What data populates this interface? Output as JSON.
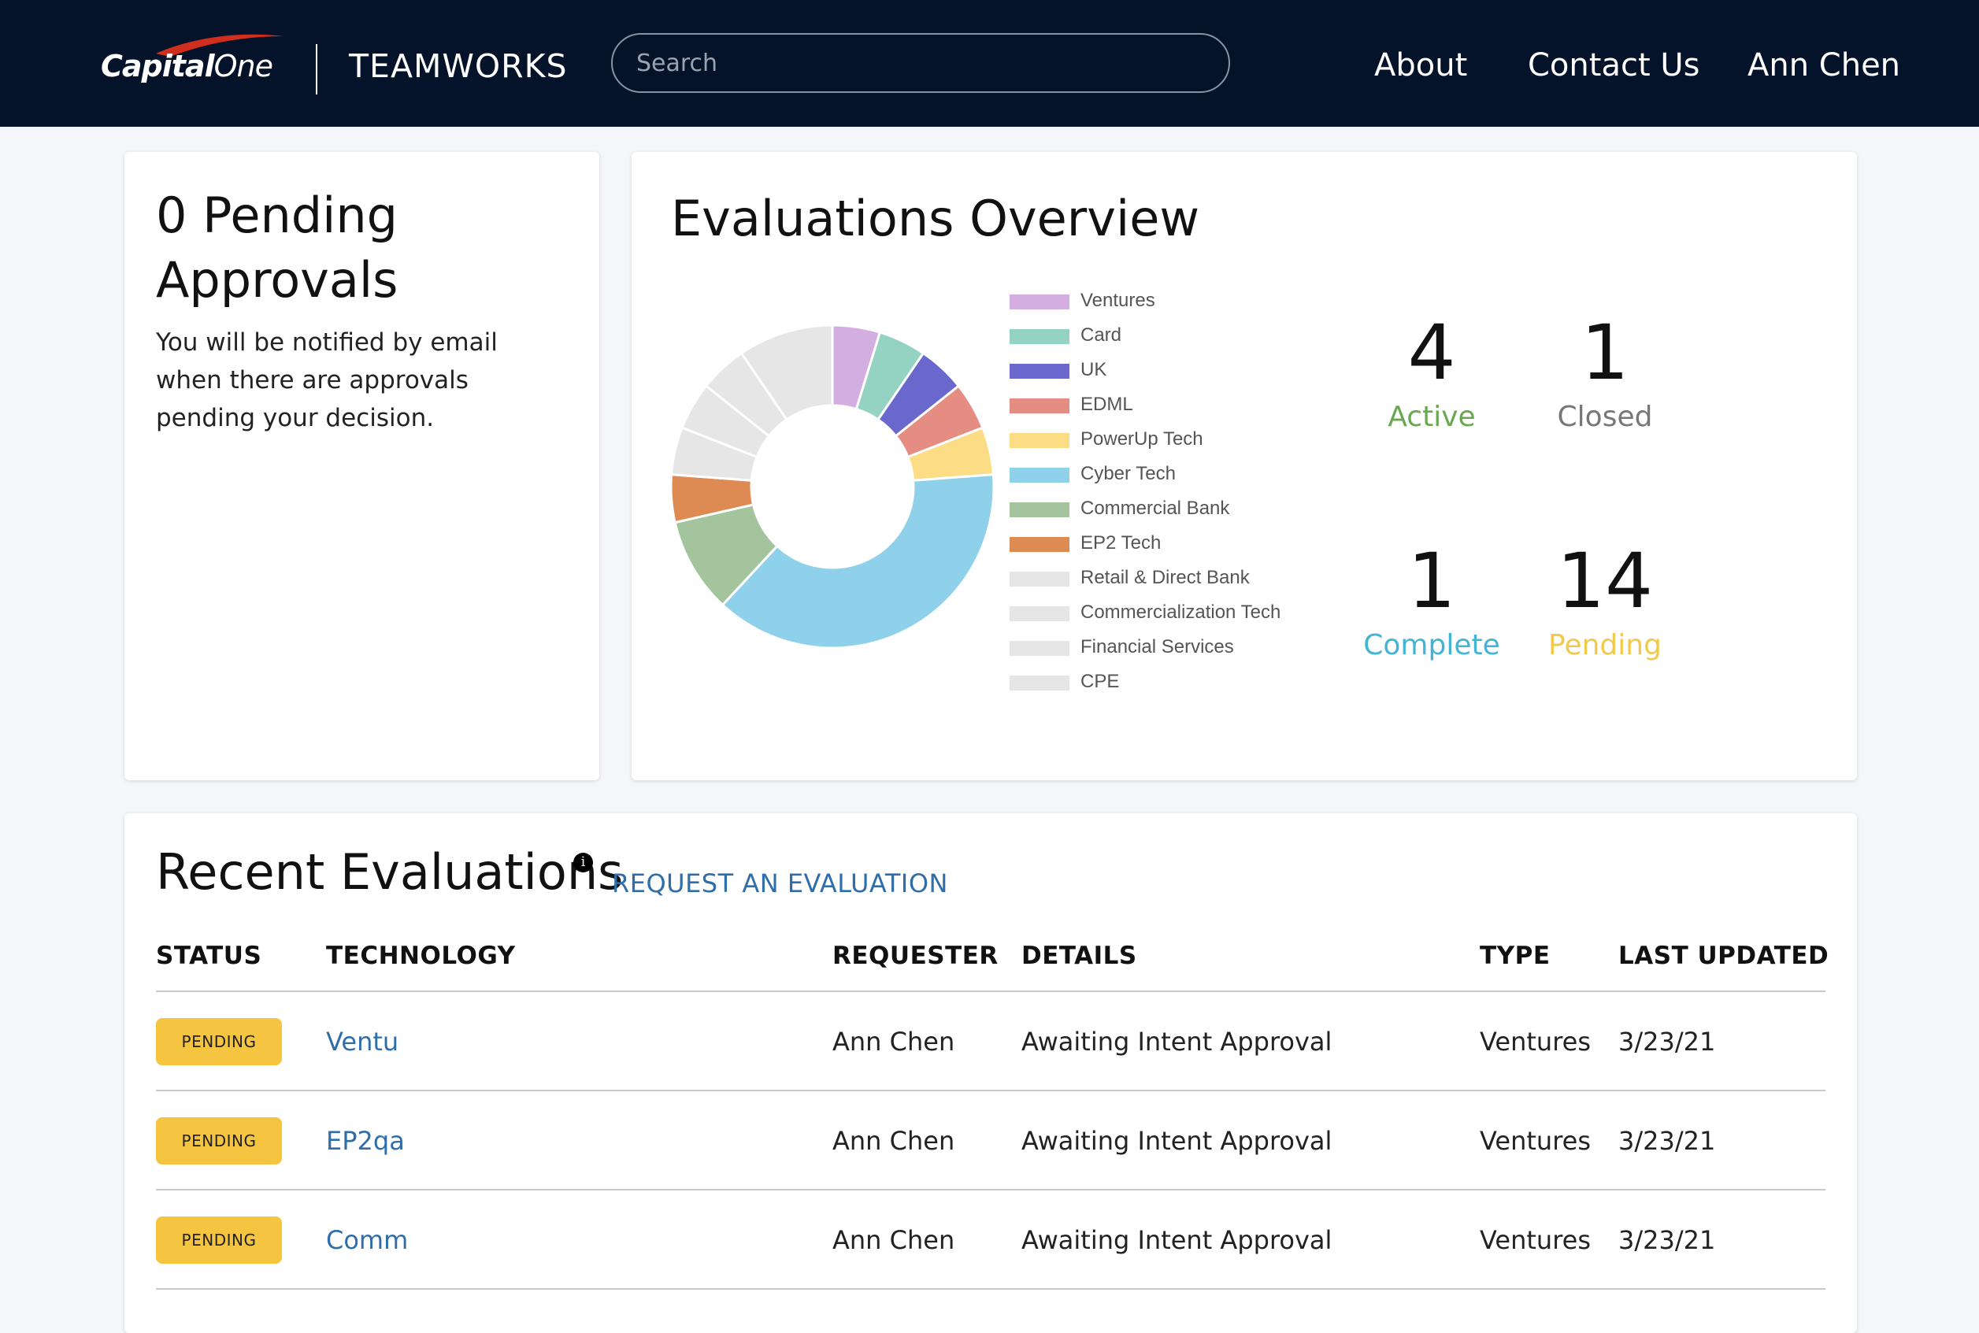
{
  "header": {
    "logo_text_bold": "Capital",
    "logo_text_one": "One",
    "app_name": "TEAMWORKS",
    "search_placeholder": "Search",
    "nav": {
      "about": "About",
      "contact": "Contact Us",
      "user": "Ann Chen"
    },
    "colors": {
      "background": "#041329",
      "logo_swoosh": "#d22e1e"
    }
  },
  "pending": {
    "title": "0 Pending Approvals",
    "text": "You will be notified by email when there are approvals pending your decision."
  },
  "overview": {
    "title": "Evaluations Overview",
    "stats": {
      "active": {
        "value": "4",
        "label": "Active",
        "color": "#6aa84f"
      },
      "closed": {
        "value": "1",
        "label": "Closed",
        "color": "#777777"
      },
      "complete": {
        "value": "1",
        "label": "Complete",
        "color": "#42b4d6"
      },
      "pending": {
        "value": "14",
        "label": "Pending",
        "color": "#f2c94c"
      }
    }
  },
  "chart_data": {
    "type": "pie",
    "donut": true,
    "legend_position": "right",
    "categories": [
      "Ventures",
      "Card",
      "UK",
      "EDML",
      "PowerUp Tech",
      "Cyber Tech",
      "Commercial Bank",
      "EP2 Tech",
      "Retail & Direct Bank",
      "Commercialization Tech",
      "Financial Services",
      "CPE"
    ],
    "values": [
      1,
      1,
      1,
      1,
      1,
      8,
      2,
      1,
      1,
      1,
      1,
      2
    ],
    "colors": [
      "#d3aee0",
      "#94d3c2",
      "#6a68cc",
      "#e58d82",
      "#fddc86",
      "#8fd0ea",
      "#a3c49c",
      "#dd8b52",
      "#e6e6e6",
      "#e6e6e6",
      "#e6e6e6",
      "#e6e6e6"
    ]
  },
  "recent": {
    "title": "Recent Evaluations",
    "info_glyph": "i",
    "request_link": "REQUEST AN EVALUATION",
    "columns": {
      "status": "STATUS",
      "technology": "TECHNOLOGY",
      "requester": "REQUESTER",
      "details": "DETAILS",
      "type": "TYPE",
      "updated": "LAST UPDATED"
    },
    "rows": [
      {
        "status": "PENDING",
        "technology": "Ventu",
        "requester": "Ann Chen",
        "details": "Awaiting Intent Approval",
        "type": "Ventures",
        "updated": "3/23/21"
      },
      {
        "status": "PENDING",
        "technology": "EP2qa",
        "requester": "Ann Chen",
        "details": "Awaiting Intent Approval",
        "type": "Ventures",
        "updated": "3/23/21"
      },
      {
        "status": "PENDING",
        "technology": "Comm",
        "requester": "Ann Chen",
        "details": "Awaiting Intent Approval",
        "type": "Ventures",
        "updated": "3/23/21"
      }
    ],
    "badge_color": "#f5c542",
    "link_color": "#2f6ea8"
  }
}
